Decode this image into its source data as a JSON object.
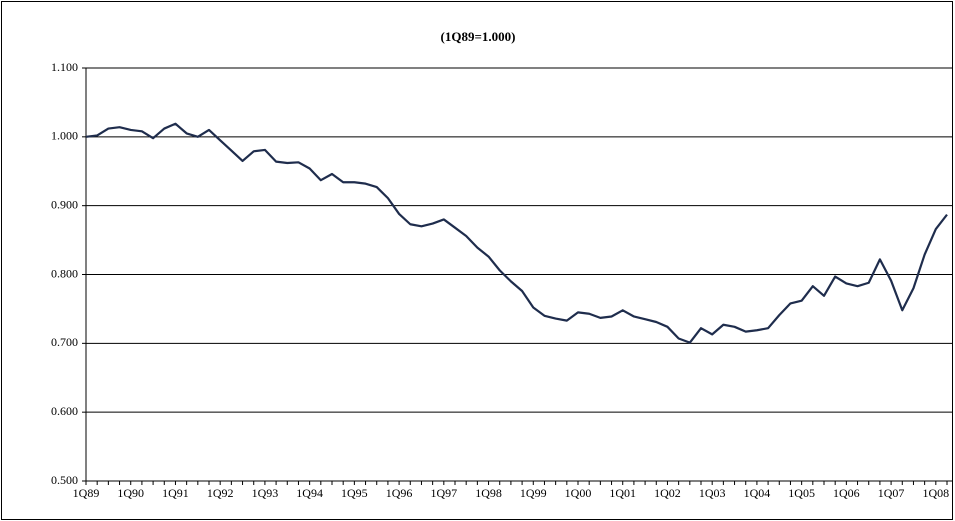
{
  "chart_data": {
    "type": "line",
    "title": "(1Q89=1.000)",
    "categories": [
      "1Q89",
      null,
      null,
      null,
      "1Q90",
      null,
      null,
      null,
      "1Q91",
      null,
      null,
      null,
      "1Q92",
      null,
      null,
      null,
      "1Q93",
      null,
      null,
      null,
      "1Q94",
      null,
      null,
      null,
      "1Q95",
      null,
      null,
      null,
      "1Q96",
      null,
      null,
      null,
      "1Q97",
      null,
      null,
      null,
      "1Q98",
      null,
      null,
      null,
      "1Q99",
      null,
      null,
      null,
      "1Q00",
      null,
      null,
      null,
      "1Q01",
      null,
      null,
      null,
      "1Q02",
      null,
      null,
      null,
      "1Q03",
      null,
      null,
      null,
      "1Q04",
      null,
      null,
      null,
      "1Q05",
      null,
      null,
      null,
      "1Q06",
      null,
      null,
      null,
      "1Q07",
      null,
      null,
      null,
      "1Q08",
      null
    ],
    "values": [
      1.0,
      1.002,
      1.012,
      1.014,
      1.01,
      1.008,
      0.998,
      1.012,
      1.019,
      1.005,
      1.0,
      1.01,
      0.995,
      0.98,
      0.965,
      0.979,
      0.981,
      0.964,
      0.962,
      0.963,
      0.954,
      0.937,
      0.946,
      0.934,
      0.934,
      0.932,
      0.927,
      0.911,
      0.888,
      0.873,
      0.87,
      0.874,
      0.88,
      0.868,
      0.856,
      0.839,
      0.826,
      0.806,
      0.79,
      0.776,
      0.752,
      0.74,
      0.736,
      0.733,
      0.745,
      0.743,
      0.737,
      0.739,
      0.748,
      0.739,
      0.735,
      0.731,
      0.724,
      0.707,
      0.701,
      0.722,
      0.713,
      0.727,
      0.724,
      0.717,
      0.719,
      0.722,
      0.741,
      0.758,
      0.762,
      0.783,
      0.769,
      0.797,
      0.787,
      0.783,
      0.788,
      0.822,
      0.791,
      0.748,
      0.78,
      0.829,
      0.866,
      0.887
    ],
    "color": "#1f2d4d",
    "ylim": [
      0.5,
      1.1
    ],
    "yticks": [
      {
        "value": 0.5,
        "label": "0.500"
      },
      {
        "value": 0.6,
        "label": "0.600"
      },
      {
        "value": 0.7,
        "label": "0.700"
      },
      {
        "value": 0.8,
        "label": "0.800"
      },
      {
        "value": 0.9,
        "label": "0.900"
      },
      {
        "value": 1.0,
        "label": "1.000"
      },
      {
        "value": 1.1,
        "label": "1.100"
      }
    ],
    "grid": true
  }
}
